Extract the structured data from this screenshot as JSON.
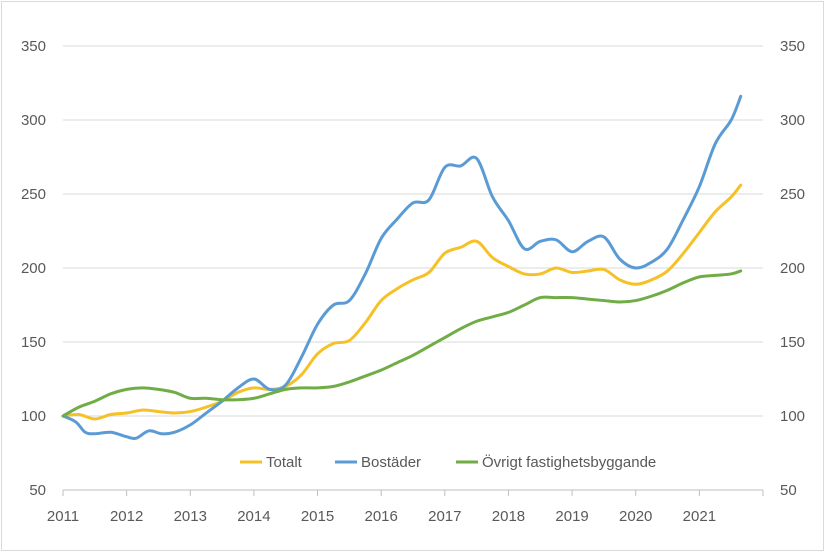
{
  "chart_data": {
    "type": "line",
    "title": "",
    "xlabel": "",
    "ylabel": "",
    "ylim": [
      50,
      350
    ],
    "y_ticks": [
      "50",
      "100",
      "150",
      "200",
      "250",
      "300",
      "350"
    ],
    "xlim": [
      2011,
      2022
    ],
    "x_ticks": [
      "2011",
      "2012",
      "2013",
      "2014",
      "2015",
      "2016",
      "2017",
      "2018",
      "2019",
      "2020",
      "2021"
    ],
    "grid": true,
    "legend_position": "bottom-right",
    "series": [
      {
        "name": "Totalt",
        "color": "#F5C127",
        "points": [
          [
            2011.0,
            100
          ],
          [
            2011.25,
            101
          ],
          [
            2011.5,
            98
          ],
          [
            2011.75,
            101
          ],
          [
            2012.0,
            102
          ],
          [
            2012.25,
            104
          ],
          [
            2012.5,
            103
          ],
          [
            2012.75,
            102
          ],
          [
            2013.0,
            103
          ],
          [
            2013.25,
            106
          ],
          [
            2013.5,
            110
          ],
          [
            2013.75,
            116
          ],
          [
            2014.0,
            119
          ],
          [
            2014.25,
            118
          ],
          [
            2014.5,
            120
          ],
          [
            2014.75,
            128
          ],
          [
            2015.0,
            142
          ],
          [
            2015.25,
            149
          ],
          [
            2015.5,
            151
          ],
          [
            2015.75,
            163
          ],
          [
            2016.0,
            178
          ],
          [
            2016.25,
            186
          ],
          [
            2016.5,
            192
          ],
          [
            2016.75,
            197
          ],
          [
            2017.0,
            210
          ],
          [
            2017.25,
            214
          ],
          [
            2017.5,
            218
          ],
          [
            2017.75,
            207
          ],
          [
            2018.0,
            201
          ],
          [
            2018.25,
            196
          ],
          [
            2018.5,
            196
          ],
          [
            2018.75,
            200
          ],
          [
            2019.0,
            197
          ],
          [
            2019.25,
            198
          ],
          [
            2019.5,
            199
          ],
          [
            2019.75,
            192
          ],
          [
            2020.0,
            189
          ],
          [
            2020.25,
            192
          ],
          [
            2020.5,
            198
          ],
          [
            2020.75,
            210
          ],
          [
            2021.0,
            224
          ],
          [
            2021.25,
            238
          ],
          [
            2021.5,
            248
          ],
          [
            2021.65,
            256
          ]
        ]
      },
      {
        "name": "Bostäder",
        "color": "#5B9BD5",
        "points": [
          [
            2011.0,
            100
          ],
          [
            2011.2,
            96
          ],
          [
            2011.35,
            89
          ],
          [
            2011.5,
            88
          ],
          [
            2011.75,
            89
          ],
          [
            2012.0,
            86
          ],
          [
            2012.15,
            85
          ],
          [
            2012.35,
            90
          ],
          [
            2012.55,
            88
          ],
          [
            2012.75,
            89
          ],
          [
            2013.0,
            94
          ],
          [
            2013.25,
            102
          ],
          [
            2013.5,
            110
          ],
          [
            2013.75,
            119
          ],
          [
            2014.0,
            125
          ],
          [
            2014.25,
            118
          ],
          [
            2014.5,
            121
          ],
          [
            2014.75,
            140
          ],
          [
            2015.0,
            162
          ],
          [
            2015.25,
            175
          ],
          [
            2015.5,
            178
          ],
          [
            2015.75,
            196
          ],
          [
            2016.0,
            220
          ],
          [
            2016.25,
            233
          ],
          [
            2016.5,
            244
          ],
          [
            2016.75,
            246
          ],
          [
            2017.0,
            268
          ],
          [
            2017.25,
            269
          ],
          [
            2017.5,
            274
          ],
          [
            2017.75,
            248
          ],
          [
            2018.0,
            232
          ],
          [
            2018.25,
            213
          ],
          [
            2018.5,
            218
          ],
          [
            2018.75,
            219
          ],
          [
            2019.0,
            211
          ],
          [
            2019.25,
            218
          ],
          [
            2019.5,
            221
          ],
          [
            2019.75,
            206
          ],
          [
            2020.0,
            200
          ],
          [
            2020.25,
            204
          ],
          [
            2020.5,
            213
          ],
          [
            2020.75,
            233
          ],
          [
            2021.0,
            255
          ],
          [
            2021.25,
            284
          ],
          [
            2021.5,
            300
          ],
          [
            2021.65,
            316
          ]
        ]
      },
      {
        "name": "Övrigt fastighetsbyggande",
        "color": "#70AD47",
        "points": [
          [
            2011.0,
            100
          ],
          [
            2011.25,
            106
          ],
          [
            2011.5,
            110
          ],
          [
            2011.75,
            115
          ],
          [
            2012.0,
            118
          ],
          [
            2012.25,
            119
          ],
          [
            2012.5,
            118
          ],
          [
            2012.75,
            116
          ],
          [
            2013.0,
            112
          ],
          [
            2013.25,
            112
          ],
          [
            2013.5,
            111
          ],
          [
            2013.75,
            111
          ],
          [
            2014.0,
            112
          ],
          [
            2014.25,
            115
          ],
          [
            2014.5,
            118
          ],
          [
            2014.75,
            119
          ],
          [
            2015.0,
            119
          ],
          [
            2015.25,
            120
          ],
          [
            2015.5,
            123
          ],
          [
            2015.75,
            127
          ],
          [
            2016.0,
            131
          ],
          [
            2016.25,
            136
          ],
          [
            2016.5,
            141
          ],
          [
            2016.75,
            147
          ],
          [
            2017.0,
            153
          ],
          [
            2017.25,
            159
          ],
          [
            2017.5,
            164
          ],
          [
            2017.75,
            167
          ],
          [
            2018.0,
            170
          ],
          [
            2018.25,
            175
          ],
          [
            2018.5,
            180
          ],
          [
            2018.75,
            180
          ],
          [
            2019.0,
            180
          ],
          [
            2019.25,
            179
          ],
          [
            2019.5,
            178
          ],
          [
            2019.75,
            177
          ],
          [
            2020.0,
            178
          ],
          [
            2020.25,
            181
          ],
          [
            2020.5,
            185
          ],
          [
            2020.75,
            190
          ],
          [
            2021.0,
            194
          ],
          [
            2021.25,
            195
          ],
          [
            2021.5,
            196
          ],
          [
            2021.65,
            198
          ]
        ]
      }
    ]
  }
}
